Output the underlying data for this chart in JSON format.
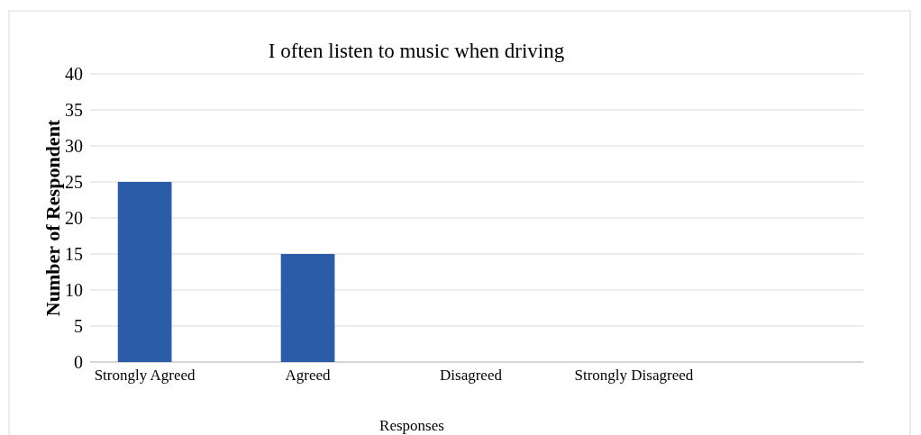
{
  "chart_data": {
    "type": "bar",
    "title": "I often listen to music when driving",
    "xlabel": "Responses",
    "ylabel": "Number of Respondent",
    "categories": [
      "Strongly Agreed",
      "Agreed",
      "Disagreed",
      "Strongly Disagreed"
    ],
    "values": [
      25,
      15,
      0,
      0
    ],
    "color": "#2a5ca8",
    "ylim": [
      0,
      40
    ],
    "yticks": [
      0,
      5,
      10,
      15,
      20,
      25,
      30,
      35,
      40
    ],
    "grid": "y"
  }
}
